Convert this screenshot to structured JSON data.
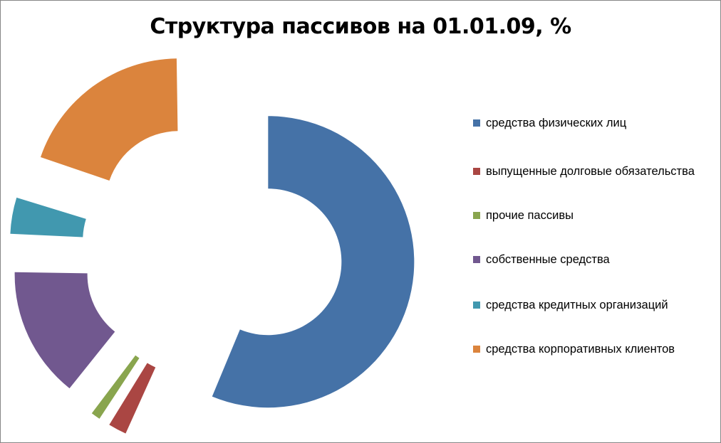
{
  "chart_data": {
    "type": "pie",
    "title": "Структура пассивов на 01.01.09, %",
    "series": [
      {
        "name": "средства физических лиц",
        "value": 56.5,
        "color": "#4572A7"
      },
      {
        "name": "выпущенные долговые обязательства",
        "value": 2.5,
        "color": "#AA4643"
      },
      {
        "name": "прочие пассивы",
        "value": 1.5,
        "color": "#89A54E"
      },
      {
        "name": "собственные средства",
        "value": 15.0,
        "color": "#71588F"
      },
      {
        "name": "средства кредитных организаций",
        "value": 4.5,
        "color": "#4198AF"
      },
      {
        "name": "средства корпоративных клиентов",
        "value": 20.0,
        "color": "#DB843D"
      }
    ],
    "legend_position": "right"
  }
}
